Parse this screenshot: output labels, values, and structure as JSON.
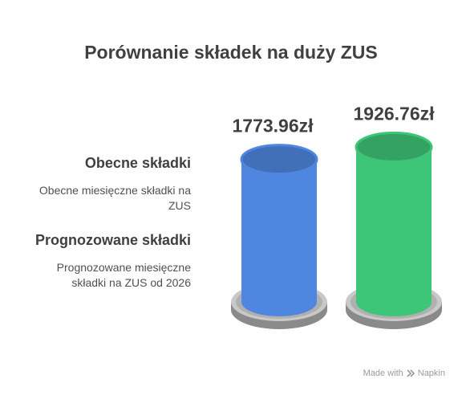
{
  "title": "Porównanie składek na duży ZUS",
  "legend": [
    {
      "title": "Obecne składki",
      "description": "Obecne miesięczne składki na ZUS"
    },
    {
      "title": "Prognozowane składki",
      "description": "Prognozowane miesięczne składki na ZUS od 2026"
    }
  ],
  "chart_data": {
    "type": "bar",
    "title": "Porównanie składek na duży ZUS",
    "categories": [
      "Obecne składki",
      "Prognozowane składki"
    ],
    "values": [
      1773.96,
      1926.76
    ],
    "value_labels": [
      "1773.96zł",
      "1926.76zł"
    ],
    "unit": "zł",
    "colors": [
      "#4f87e0",
      "#3ec678"
    ],
    "grid": false,
    "legend_position": "left"
  },
  "credit": {
    "text": "Made with",
    "brand": "Napkin",
    "icon": "napkin-logo-icon"
  }
}
